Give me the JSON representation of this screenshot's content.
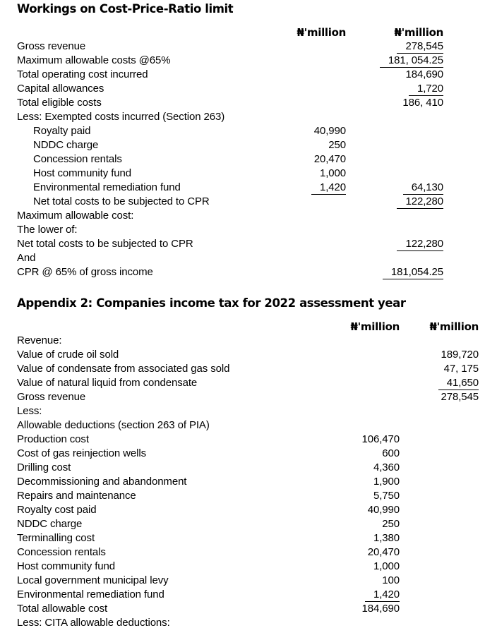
{
  "doc": {
    "text_color": "#000000",
    "background_color": "#ffffff"
  },
  "table1": {
    "title": "Workings on Cost-Price-Ratio limit",
    "col_headers": [
      "₦'million",
      "₦'million"
    ],
    "rows": [
      {
        "label": "Gross revenue",
        "c1": "",
        "c2": "278,545",
        "u2": true
      },
      {
        "label": "Maximum allowable costs @65%",
        "c1": "",
        "c2": "181, 054.25",
        "u2": true
      },
      {
        "label": "Total operating cost incurred",
        "c1": "",
        "c2": "184,690"
      },
      {
        "label": "Capital allowances",
        "c1": "",
        "c2": "1,720",
        "u2": true
      },
      {
        "label": "Total eligible costs",
        "c1": "",
        "c2": "186, 410"
      },
      {
        "label": "Less: Exempted costs incurred (Section 263)",
        "c1": "",
        "c2": ""
      },
      {
        "label": "Royalty paid",
        "indent": true,
        "c1": "40,990",
        "c2": ""
      },
      {
        "label": "NDDC charge",
        "indent": true,
        "c1": "250",
        "c2": ""
      },
      {
        "label": "Concession rentals",
        "indent": true,
        "c1": "20,470",
        "c2": ""
      },
      {
        "label": "Host community fund",
        "indent": true,
        "c1": "1,000",
        "c2": ""
      },
      {
        "label": "Environmental remediation fund",
        "indent": true,
        "c1": "1,420",
        "u1": true,
        "c2": "64,130",
        "u2": true
      },
      {
        "label": "Net total costs to be subjected to CPR",
        "indent": true,
        "c1": "",
        "c2": "122,280",
        "u2": true
      },
      {
        "label": "Maximum allowable cost:",
        "c1": "",
        "c2": ""
      },
      {
        "label": "The lower of:",
        "c1": "",
        "c2": ""
      },
      {
        "label": "Net total costs to be subjected to CPR",
        "c1": "",
        "c2": "122,280",
        "u2": true
      },
      {
        "label": "And",
        "c1": "",
        "c2": ""
      },
      {
        "label": "CPR @ 65% of gross income",
        "c1": "",
        "c2": "181,054.25",
        "u2": true
      }
    ]
  },
  "table2": {
    "title": "Appendix 2: Companies income tax for 2022 assessment year",
    "col_headers": [
      "₦'million",
      "₦'million"
    ],
    "rows": [
      {
        "label": "Revenue:",
        "c1": "",
        "c2": ""
      },
      {
        "label": "Value of crude oil sold",
        "c1": "",
        "c2": "189,720"
      },
      {
        "label": "Value of condensate from associated gas sold",
        "c1": "",
        "c2": "47, 175"
      },
      {
        "label": "Value of natural liquid from condensate",
        "c1": "",
        "c2": "41,650",
        "u2": true
      },
      {
        "label": "Gross revenue",
        "c1": "",
        "c2": "278,545"
      },
      {
        "label": "Less:",
        "c1": "",
        "c2": ""
      },
      {
        "label": "Allowable deductions (section 263 of PIA)",
        "c1": "",
        "c2": ""
      },
      {
        "label": "Production cost",
        "c1": "106,470",
        "c2": ""
      },
      {
        "label": "Cost of gas reinjection wells",
        "c1": "600",
        "c2": ""
      },
      {
        "label": "Drilling cost",
        "c1": "4,360",
        "c2": ""
      },
      {
        "label": "Decommissioning and abandonment",
        "c1": "1,900",
        "c2": ""
      },
      {
        "label": "Repairs and maintenance",
        "c1": "5,750",
        "c2": ""
      },
      {
        "label": "Royalty cost paid",
        "c1": "40,990",
        "c2": ""
      },
      {
        "label": "NDDC charge",
        "c1": "250",
        "c2": ""
      },
      {
        "label": "Terminalling cost",
        "c1": "1,380",
        "c2": ""
      },
      {
        "label": "Concession rentals",
        "c1": "20,470",
        "c2": ""
      },
      {
        "label": "Host community fund",
        "c1": "1,000",
        "c2": ""
      },
      {
        "label": "Local government municipal levy",
        "c1": "100",
        "c2": ""
      },
      {
        "label": "Environmental remediation fund",
        "c1": "1,420",
        "u1": true,
        "c2": ""
      },
      {
        "label": "Total allowable cost",
        "c1": "184,690",
        "c2": ""
      },
      {
        "label": "Less: CITA allowable deductions:",
        "c1": "",
        "c2": ""
      }
    ]
  }
}
